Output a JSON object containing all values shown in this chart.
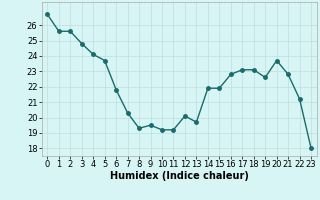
{
  "x": [
    0,
    1,
    2,
    3,
    4,
    5,
    6,
    7,
    8,
    9,
    10,
    11,
    12,
    13,
    14,
    15,
    16,
    17,
    18,
    19,
    20,
    21,
    22,
    23
  ],
  "y": [
    26.7,
    25.6,
    25.6,
    24.8,
    24.1,
    23.7,
    21.8,
    20.3,
    19.3,
    19.5,
    19.2,
    19.2,
    20.1,
    19.7,
    21.9,
    21.9,
    22.8,
    23.1,
    23.1,
    22.6,
    23.7,
    22.8,
    21.2,
    18.0
  ],
  "line_color": "#1a6b6b",
  "marker": "o",
  "markersize": 2.5,
  "linewidth": 1.0,
  "xlabel": "Humidex (Indice chaleur)",
  "ylim": [
    17.5,
    27.5
  ],
  "xlim": [
    -0.5,
    23.5
  ],
  "yticks": [
    18,
    19,
    20,
    21,
    22,
    23,
    24,
    25,
    26
  ],
  "xtick_labels": [
    "0",
    "1",
    "2",
    "3",
    "4",
    "5",
    "6",
    "7",
    "8",
    "9",
    "10",
    "11",
    "12",
    "13",
    "14",
    "15",
    "16",
    "17",
    "18",
    "19",
    "20",
    "21",
    "22",
    "23"
  ],
  "bg_color": "#d8f5f5",
  "grid_color": "#c0dede",
  "xlabel_fontsize": 7,
  "tick_fontsize": 6
}
